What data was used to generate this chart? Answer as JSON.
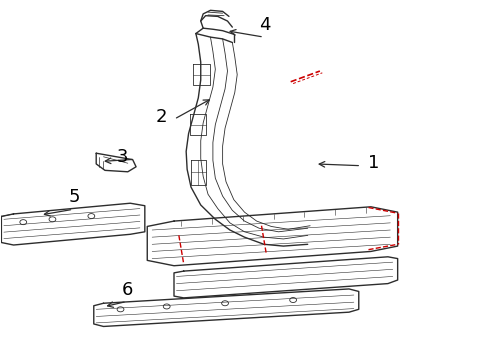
{
  "bg_color": "#ffffff",
  "line_color": "#2d2d2d",
  "red_color": "#cc0000",
  "label_color": "#000000",
  "figsize": [
    4.89,
    3.6
  ],
  "dpi": 100,
  "label_fontsize": 13
}
